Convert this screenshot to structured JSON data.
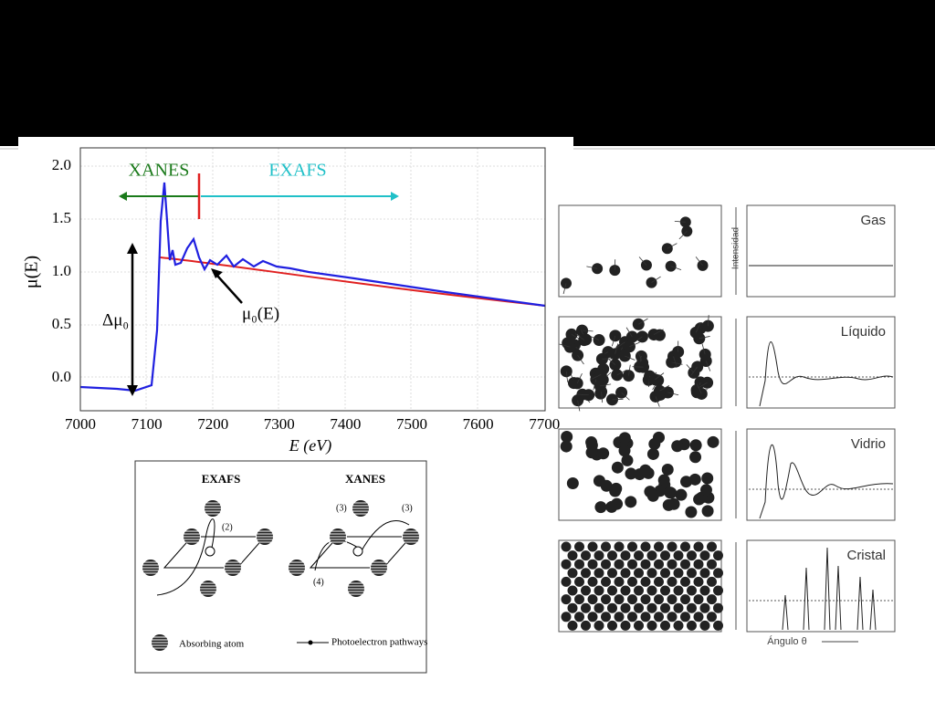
{
  "xafs_plot": {
    "regions": [
      "XANES",
      "EXAFS"
    ],
    "y_label": "μ(E)",
    "x_label": "E (eV)",
    "y_ticks": [
      "2.0",
      "1.5",
      "1.0",
      "0.5",
      "0.0"
    ],
    "x_ticks": [
      "7000",
      "7100",
      "7200",
      "7300",
      "7400",
      "7500",
      "7600",
      "7700"
    ],
    "annotations": [
      "Δμ₀",
      "μ₀(E)"
    ]
  },
  "scattering_diagram": {
    "panels": [
      "EXAFS",
      "XANES"
    ],
    "path_labels": [
      "(2)",
      "(3)",
      "(3)",
      "(4)"
    ],
    "legend": [
      "Absorbing atom",
      "Photoelectron pathways"
    ]
  },
  "structure_figure": {
    "rows": [
      "Gas",
      "Líquido",
      "Vidrio",
      "Cristal"
    ],
    "y_axis_label": "Intensidad",
    "x_axis_label": "Ángulo θ"
  }
}
